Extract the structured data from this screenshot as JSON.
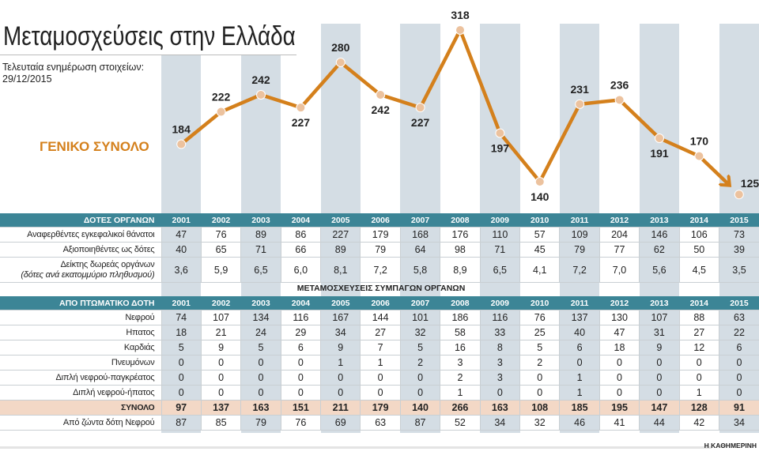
{
  "title": "Μεταμοσχεύσεις στην Ελλάδα",
  "updated_line1": "Τελευταία ενημέρωση στοιχείων:",
  "updated_line2": "29/12/2015",
  "colors": {
    "line": "#d4801c",
    "marker": "#ecc29e",
    "header": "#3c8596",
    "band": "#d4dde4",
    "total_row": "#f3d8c6"
  },
  "chart_data": {
    "type": "line",
    "title": "Μεταμοσχεύσεις στην Ελλάδα",
    "series": [
      {
        "name": "ΓΕΝΙΚΟ ΣΥΝΟΛΟ",
        "x": [
          2001,
          2002,
          2003,
          2004,
          2005,
          2006,
          2007,
          2008,
          2009,
          2010,
          2011,
          2012,
          2013,
          2014,
          2015
        ],
        "values": [
          184,
          222,
          242,
          227,
          280,
          242,
          227,
          318,
          197,
          140,
          231,
          236,
          191,
          170,
          125
        ]
      }
    ],
    "grid": false,
    "data_labels": true
  },
  "donors_table": {
    "header": "ΔΟΤΕΣ ΟΡΓΑΝΩΝ",
    "years": [
      "2001",
      "2002",
      "2003",
      "2004",
      "2005",
      "2006",
      "2007",
      "2008",
      "2009",
      "2010",
      "2011",
      "2012",
      "2013",
      "2014",
      "2015"
    ],
    "rows": [
      {
        "label": "Αναφερθέντες εγκεφαλικοί θάνατοι",
        "values": [
          "47",
          "76",
          "89",
          "86",
          "227",
          "179",
          "168",
          "176",
          "110",
          "57",
          "109",
          "204",
          "146",
          "106",
          "73"
        ]
      },
      {
        "label": "Αξιοποιηθέντες ως δότες",
        "values": [
          "40",
          "65",
          "71",
          "66",
          "89",
          "79",
          "64",
          "98",
          "71",
          "45",
          "79",
          "77",
          "62",
          "50",
          "39"
        ]
      },
      {
        "label": "Δείκτης δωρεάς οργάνων",
        "label2": "(δότες ανά εκατομμύριο πληθυσμού)",
        "values": [
          "3,6",
          "5,9",
          "6,5",
          "6,0",
          "8,1",
          "7,2",
          "5,8",
          "8,9",
          "6,5",
          "4,1",
          "7,2",
          "7,0",
          "5,6",
          "4,5",
          "3,5"
        ]
      }
    ]
  },
  "transplants_subtitle": "ΜΕΤΑΜΟΣΧΕΥΣΕΙΣ ΣΥΜΠΑΓΩΝ ΟΡΓΑΝΩΝ",
  "transplants_table": {
    "header": "ΑΠΟ ΠΤΩΜΑΤΙΚΟ ΔΟΤΗ",
    "years": [
      "2001",
      "2002",
      "2003",
      "2004",
      "2005",
      "2006",
      "2007",
      "2008",
      "2009",
      "2010",
      "2011",
      "2012",
      "2013",
      "2014",
      "2015"
    ],
    "rows": [
      {
        "label": "Νεφρού",
        "values": [
          "74",
          "107",
          "134",
          "116",
          "167",
          "144",
          "101",
          "186",
          "116",
          "76",
          "137",
          "130",
          "107",
          "88",
          "63"
        ]
      },
      {
        "label": "Ηπατος",
        "values": [
          "18",
          "21",
          "24",
          "29",
          "34",
          "27",
          "32",
          "58",
          "33",
          "25",
          "40",
          "47",
          "31",
          "27",
          "22"
        ]
      },
      {
        "label": "Καρδιάς",
        "values": [
          "5",
          "9",
          "5",
          "6",
          "9",
          "7",
          "5",
          "16",
          "8",
          "5",
          "6",
          "18",
          "9",
          "12",
          "6"
        ]
      },
      {
        "label": "Πνευμόνων",
        "values": [
          "0",
          "0",
          "0",
          "0",
          "1",
          "1",
          "2",
          "3",
          "3",
          "2",
          "0",
          "0",
          "0",
          "0",
          "0"
        ]
      },
      {
        "label": "Διπλή νεφρού-παγκρέατος",
        "values": [
          "0",
          "0",
          "0",
          "0",
          "0",
          "0",
          "0",
          "2",
          "3",
          "0",
          "1",
          "0",
          "0",
          "0",
          "0"
        ]
      },
      {
        "label": "Διπλή νεφρού-ήπατος",
        "values": [
          "0",
          "0",
          "0",
          "0",
          "0",
          "0",
          "0",
          "1",
          "0",
          "0",
          "1",
          "0",
          "0",
          "1",
          "0"
        ]
      },
      {
        "label": "ΣΥΝΟΛΟ",
        "total": true,
        "values": [
          "97",
          "137",
          "163",
          "151",
          "211",
          "179",
          "140",
          "266",
          "163",
          "108",
          "185",
          "195",
          "147",
          "128",
          "91"
        ]
      },
      {
        "label": "Από ζώντα δότη Νεφρού",
        "values": [
          "87",
          "85",
          "79",
          "76",
          "69",
          "63",
          "87",
          "52",
          "34",
          "32",
          "46",
          "41",
          "44",
          "42",
          "34"
        ]
      }
    ]
  },
  "credit": "Η ΚΑΘΗΜΕΡΙΝΗ"
}
